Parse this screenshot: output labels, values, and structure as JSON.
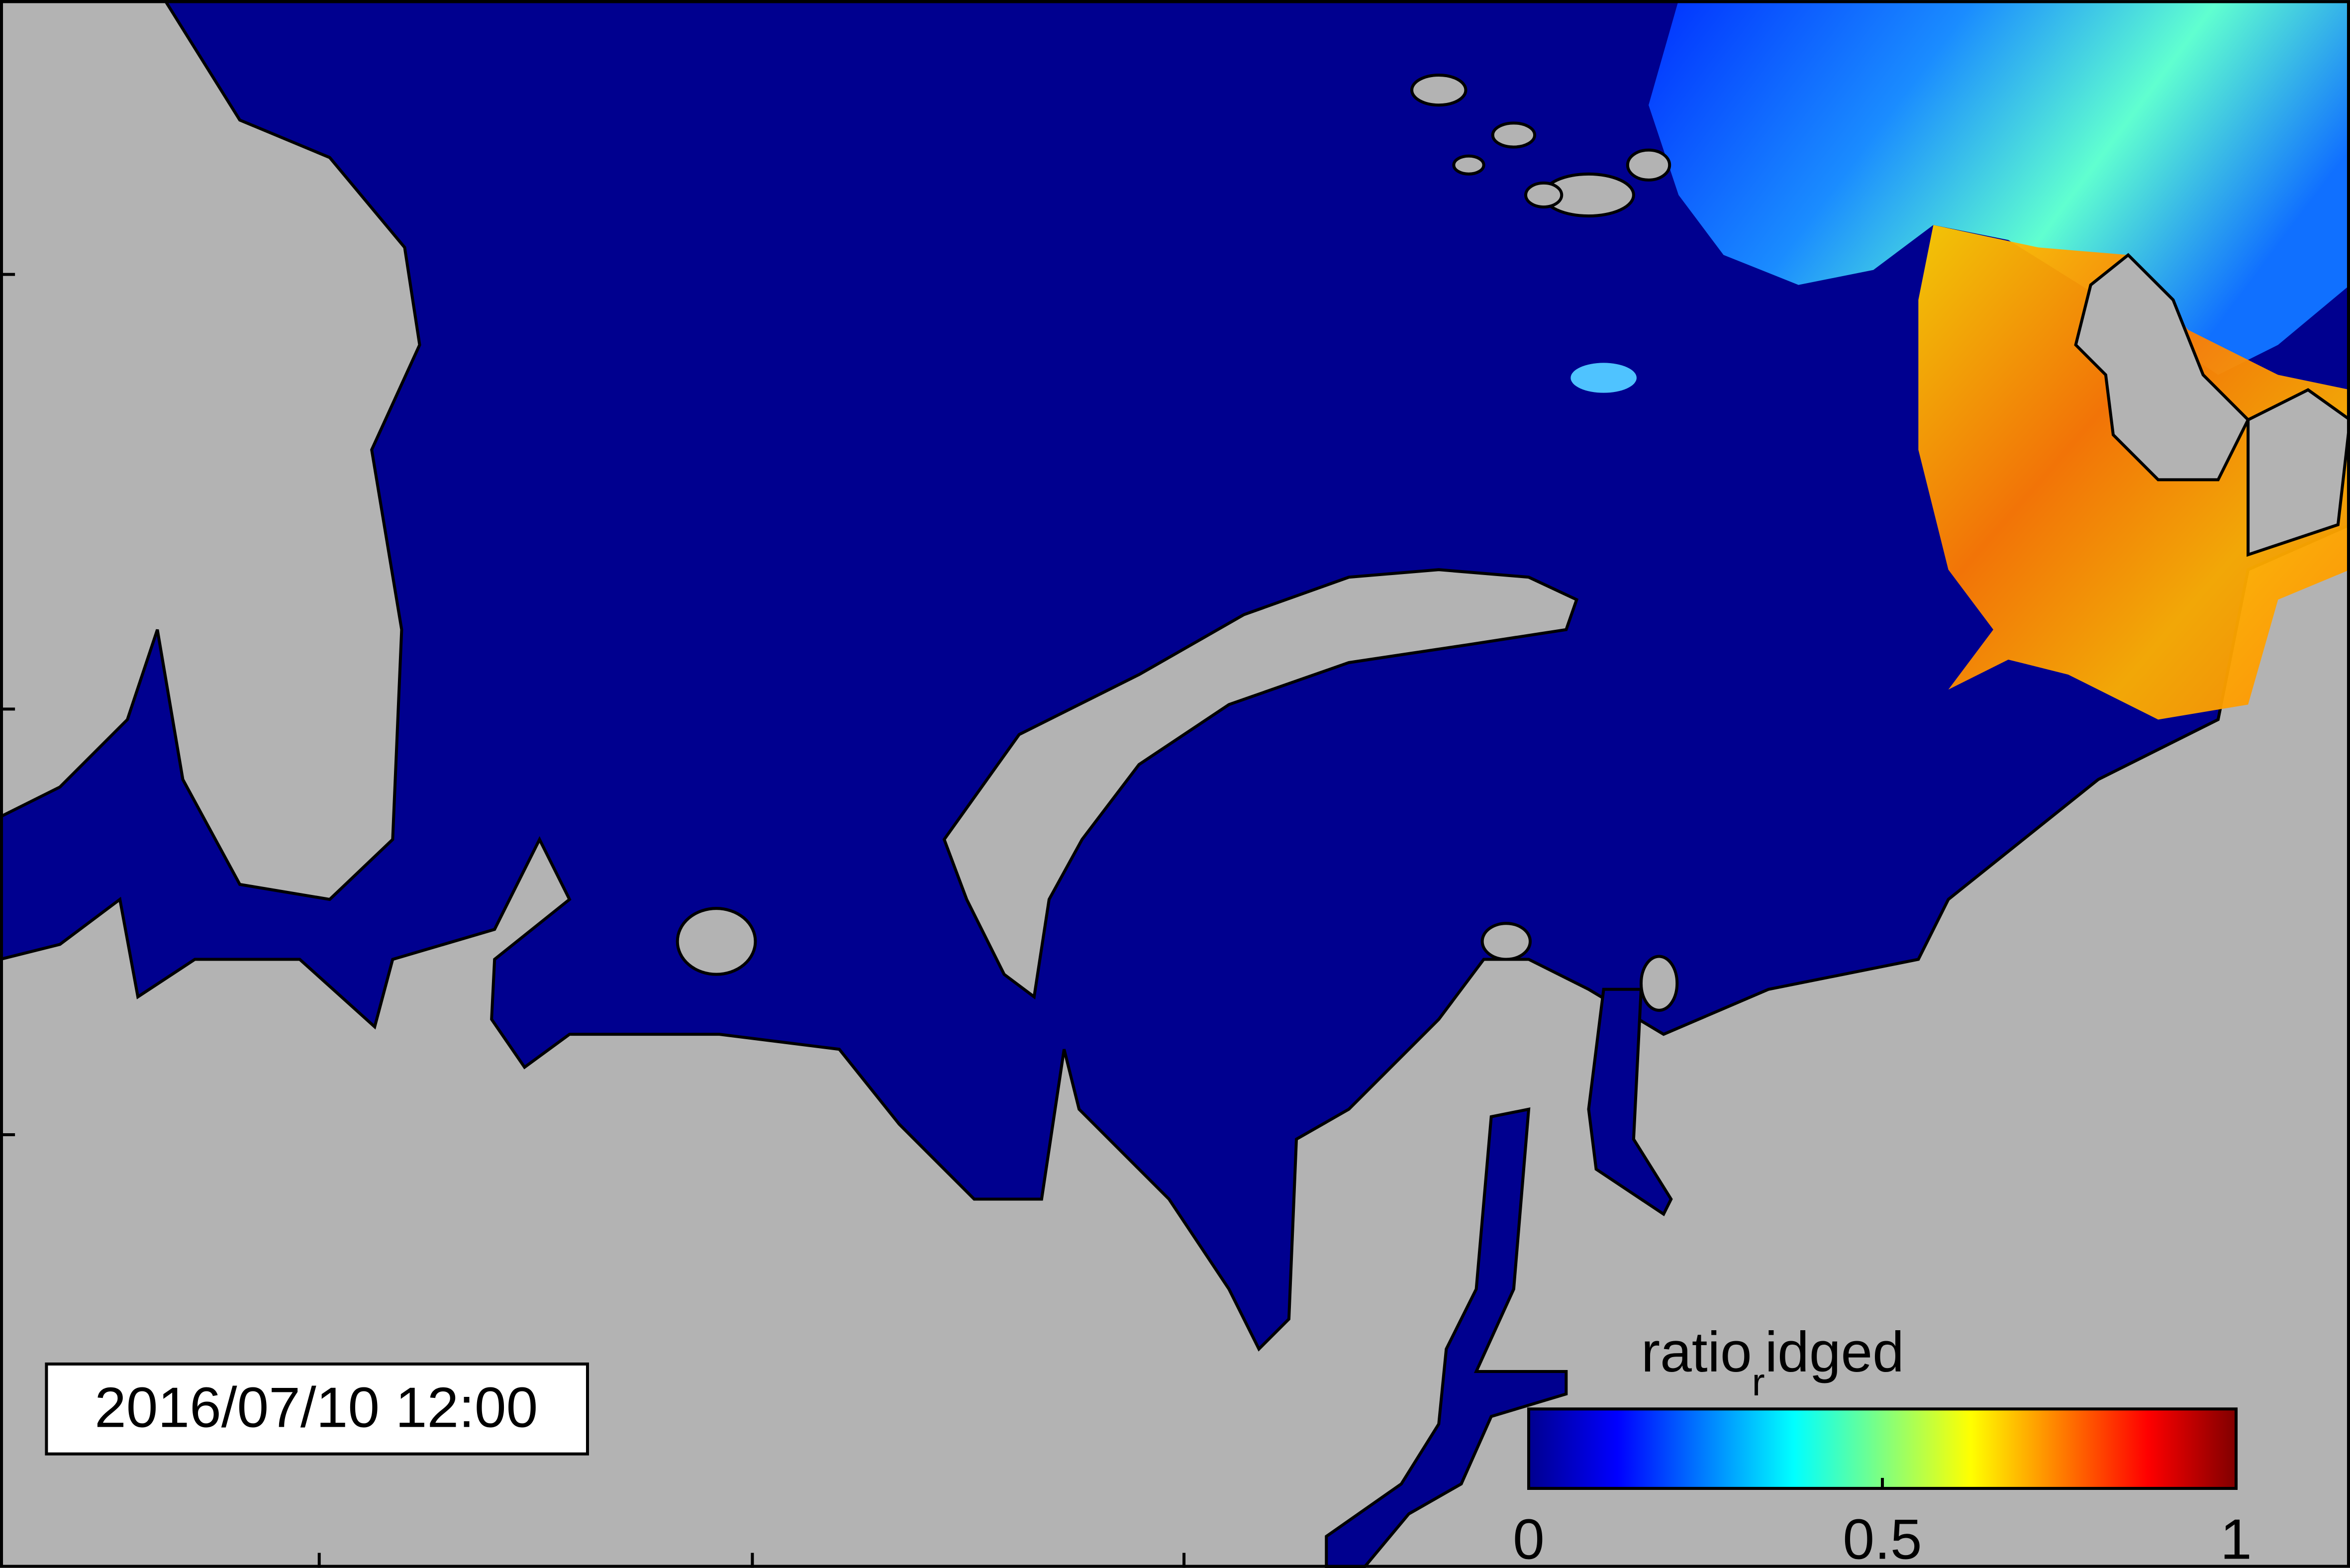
{
  "map": {
    "timestamp": "2016/07/10 12:00",
    "colorbar": {
      "label": {
        "main": "ratio",
        "subscript": "r",
        "rest": "idged"
      },
      "clim": [
        0,
        1
      ],
      "ticks": [
        0,
        0.5,
        1
      ],
      "colormap": "jet"
    }
  }
}
